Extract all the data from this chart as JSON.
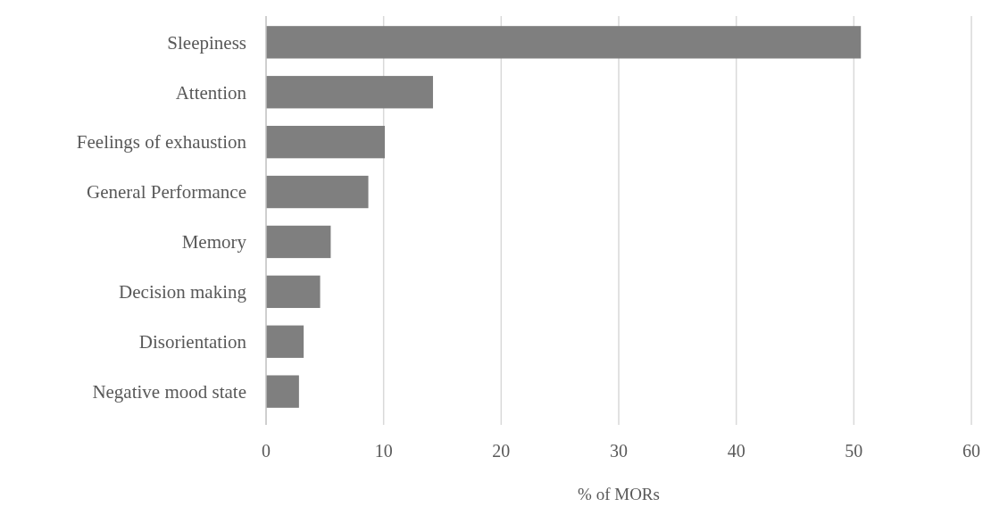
{
  "chart_data": {
    "type": "bar",
    "orientation": "horizontal",
    "xlabel": "% of MORs",
    "categories": [
      "Sleepiness",
      "Attention",
      "Feelings of exhaustion",
      "General Performance",
      "Memory",
      "Decision making",
      "Disorientation",
      "Negative mood state"
    ],
    "values": [
      50.6,
      14.2,
      10.1,
      8.7,
      5.5,
      4.6,
      3.2,
      2.8
    ],
    "color": "#7f7f7f",
    "xlim": [
      0,
      60
    ],
    "xticks": [
      0,
      10,
      20,
      30,
      40,
      50,
      60
    ],
    "grid": "x"
  }
}
